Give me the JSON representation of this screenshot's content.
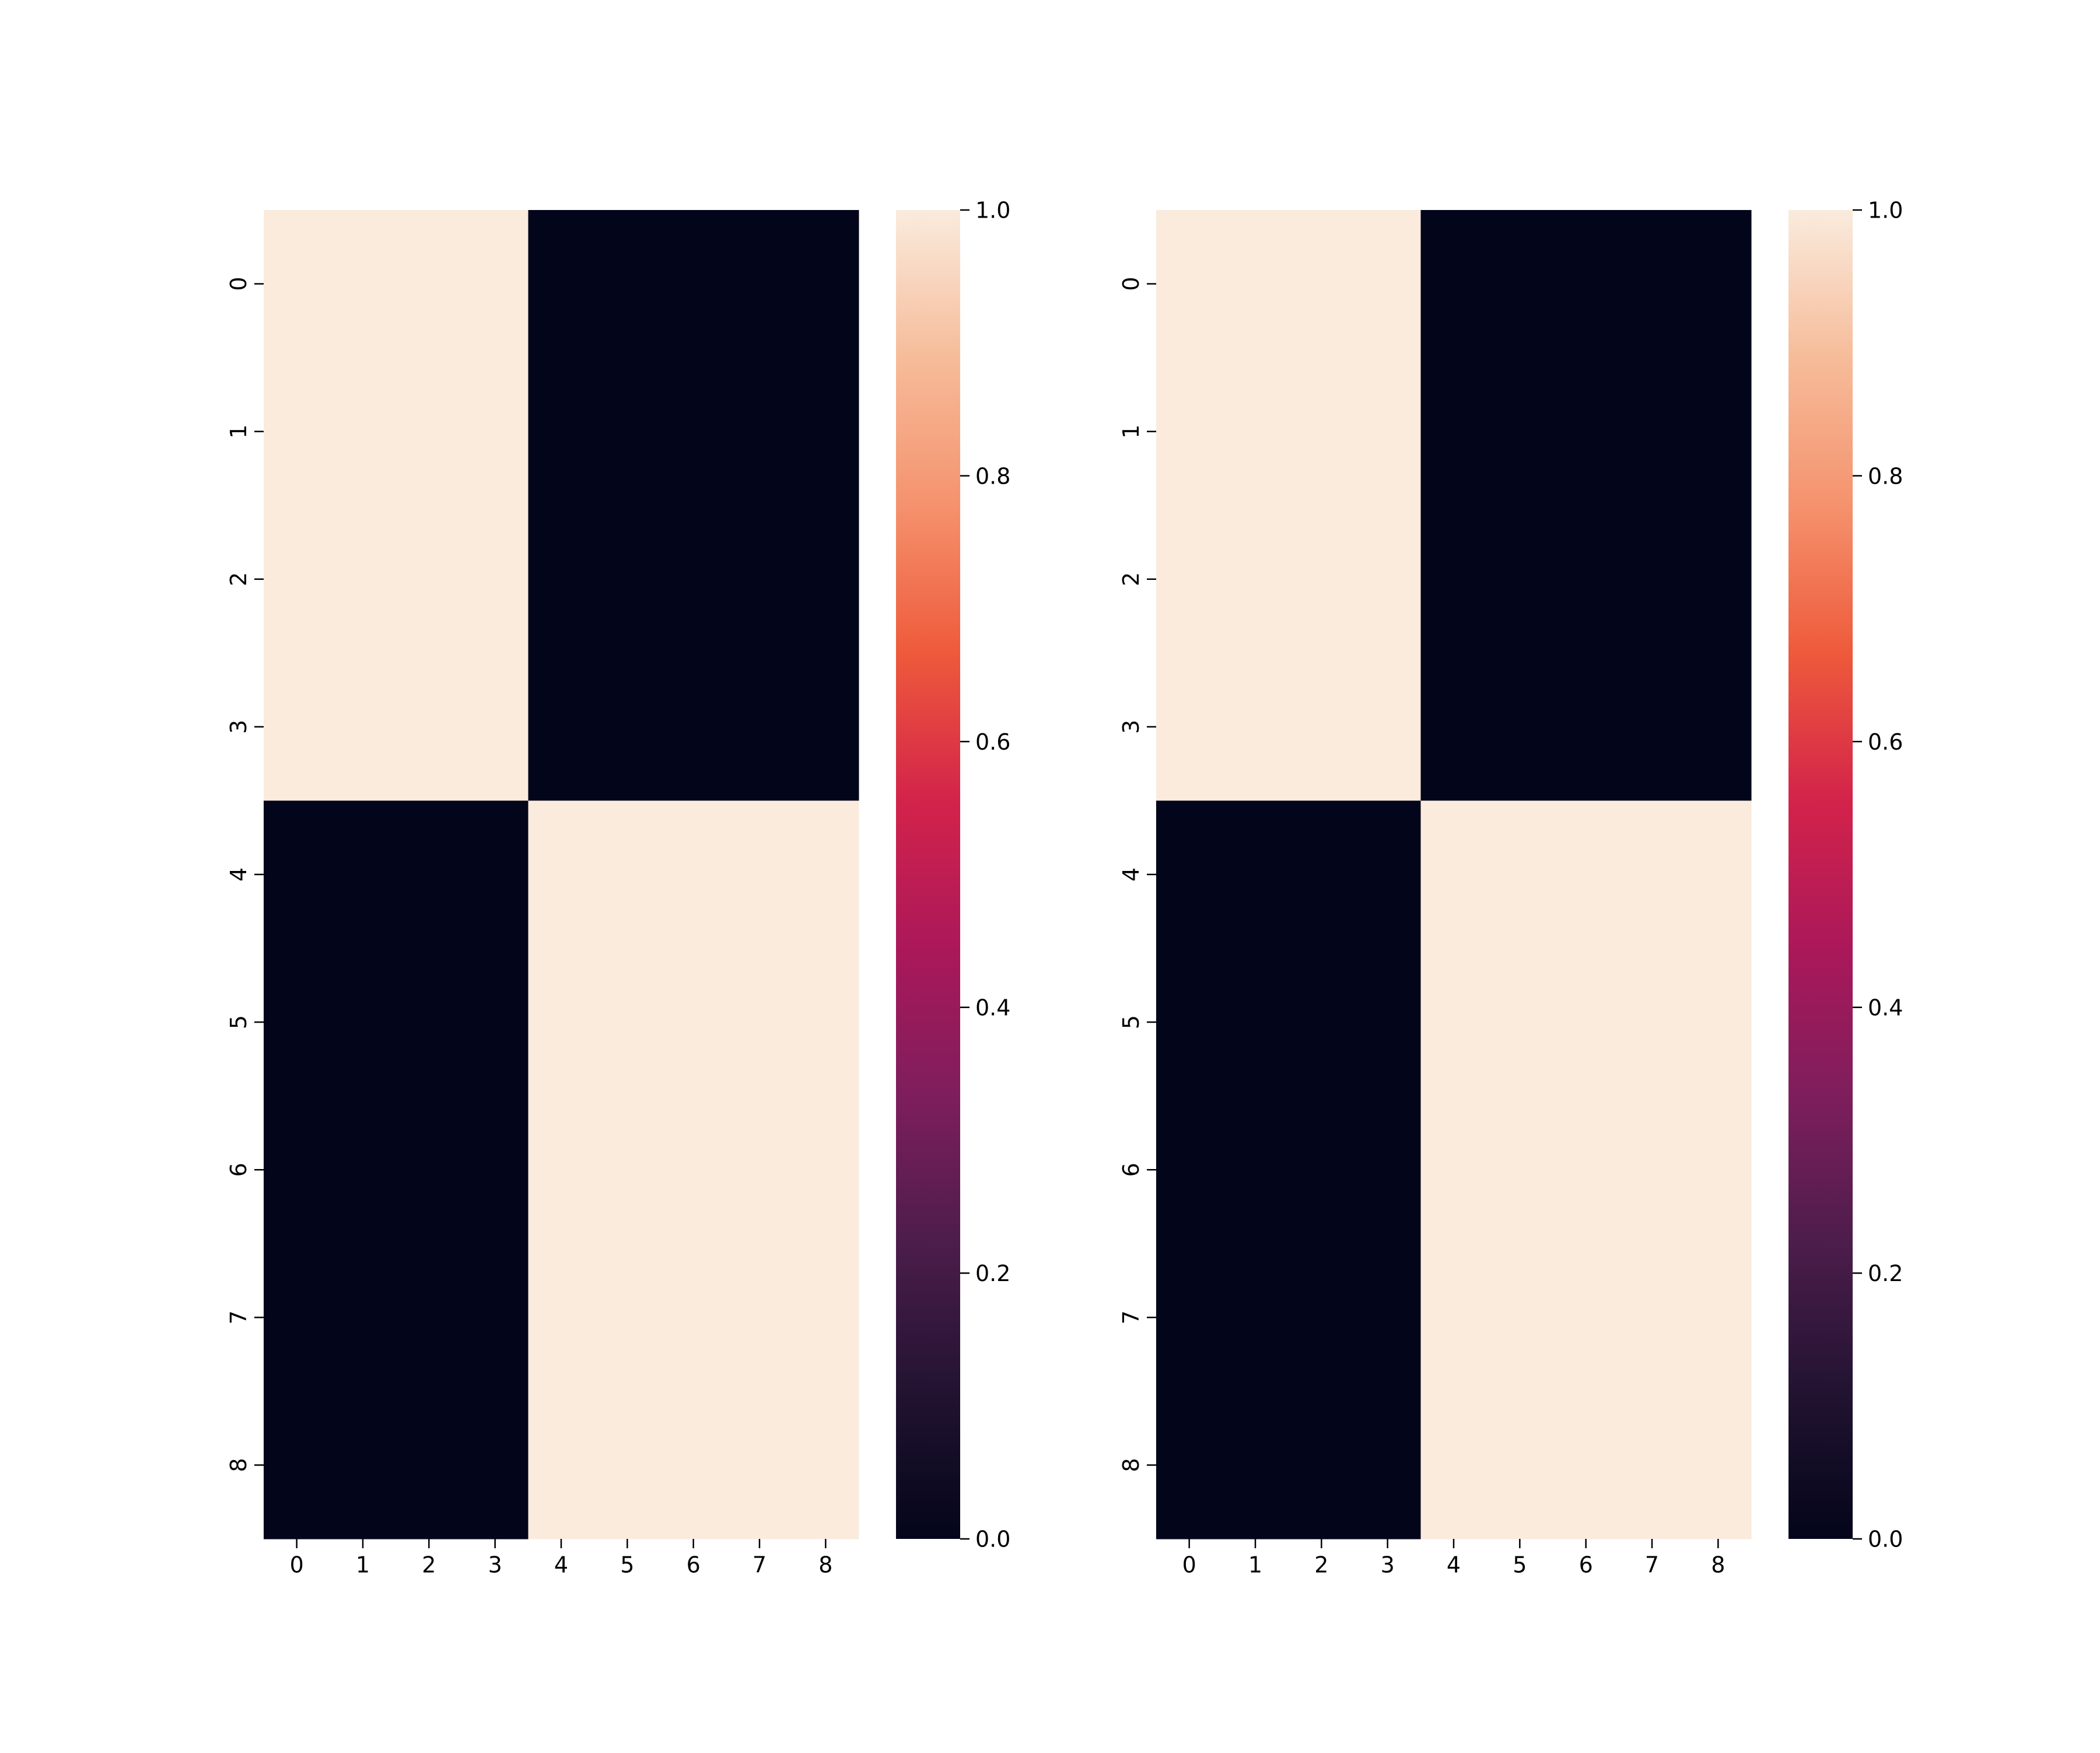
{
  "chart_data": [
    {
      "type": "heatmap",
      "x_categories": [
        "0",
        "1",
        "2",
        "3",
        "4",
        "5",
        "6",
        "7",
        "8"
      ],
      "y_categories": [
        "0",
        "1",
        "2",
        "3",
        "4",
        "5",
        "6",
        "7",
        "8"
      ],
      "values": [
        [
          1,
          1,
          1,
          1,
          0,
          0,
          0,
          0,
          0
        ],
        [
          1,
          1,
          1,
          1,
          0,
          0,
          0,
          0,
          0
        ],
        [
          1,
          1,
          1,
          1,
          0,
          0,
          0,
          0,
          0
        ],
        [
          1,
          1,
          1,
          1,
          0,
          0,
          0,
          0,
          0
        ],
        [
          0,
          0,
          0,
          0,
          1,
          1,
          1,
          1,
          1
        ],
        [
          0,
          0,
          0,
          0,
          1,
          1,
          1,
          1,
          1
        ],
        [
          0,
          0,
          0,
          0,
          1,
          1,
          1,
          1,
          1
        ],
        [
          0,
          0,
          0,
          0,
          1,
          1,
          1,
          1,
          1
        ],
        [
          0,
          0,
          0,
          0,
          1,
          1,
          1,
          1,
          1
        ]
      ],
      "colorbar": {
        "range": [
          0,
          1
        ],
        "ticks": [
          0,
          0.2,
          0.4,
          0.6,
          0.8,
          1
        ],
        "tick_labels": [
          "0.0",
          "0.2",
          "0.4",
          "0.6",
          "0.8",
          "1.0"
        ]
      },
      "title": "",
      "xlabel": "",
      "ylabel": "",
      "grid": false
    },
    {
      "type": "heatmap",
      "x_categories": [
        "0",
        "1",
        "2",
        "3",
        "4",
        "5",
        "6",
        "7",
        "8"
      ],
      "y_categories": [
        "0",
        "1",
        "2",
        "3",
        "4",
        "5",
        "6",
        "7",
        "8"
      ],
      "values": [
        [
          1,
          1,
          1,
          1,
          0,
          0,
          0,
          0,
          0
        ],
        [
          1,
          1,
          1,
          1,
          0,
          0,
          0,
          0,
          0
        ],
        [
          1,
          1,
          1,
          1,
          0,
          0,
          0,
          0,
          0
        ],
        [
          1,
          1,
          1,
          1,
          0,
          0,
          0,
          0,
          0
        ],
        [
          0,
          0,
          0,
          0,
          1,
          1,
          1,
          1,
          1
        ],
        [
          0,
          0,
          0,
          0,
          1,
          1,
          1,
          1,
          1
        ],
        [
          0,
          0,
          0,
          0,
          1,
          1,
          1,
          1,
          1
        ],
        [
          0,
          0,
          0,
          0,
          1,
          1,
          1,
          1,
          1
        ],
        [
          0,
          0,
          0,
          0,
          1,
          1,
          1,
          1,
          1
        ]
      ],
      "colorbar": {
        "range": [
          0,
          1
        ],
        "ticks": [
          0,
          0.2,
          0.4,
          0.6,
          0.8,
          1
        ],
        "tick_labels": [
          "0.0",
          "0.2",
          "0.4",
          "0.6",
          "0.8",
          "1.0"
        ]
      },
      "title": "",
      "xlabel": "",
      "ylabel": "",
      "grid": false
    }
  ],
  "colormap": {
    "name": "rocket",
    "stops": [
      "#03051a",
      "#221331",
      "#4c1d4b",
      "#7e1e5c",
      "#ab185a",
      "#d3234a",
      "#ee5a3b",
      "#f5926d",
      "#f6bc9a",
      "#faebdd"
    ]
  }
}
